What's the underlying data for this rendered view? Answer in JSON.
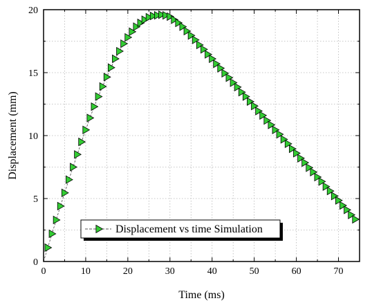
{
  "chart_data": {
    "type": "scatter",
    "title": "",
    "xlabel": "Time (ms)",
    "ylabel": "Displacement (mm)",
    "xlim": [
      0,
      75
    ],
    "ylim": [
      0,
      20
    ],
    "xticks": [
      0,
      10,
      20,
      30,
      40,
      50,
      60,
      70
    ],
    "yticks": [
      0,
      5,
      10,
      15,
      20
    ],
    "grid": true,
    "legend_position": "bottom-center",
    "series": [
      {
        "name": "Displacement vs time Simulation",
        "marker": "triangle-right",
        "color": "#33cc33",
        "line_style": "dashed",
        "x": [
          0,
          1,
          2,
          3,
          4,
          5,
          6,
          7,
          8,
          9,
          10,
          11,
          12,
          13,
          14,
          15,
          16,
          17,
          18,
          19,
          20,
          21,
          22,
          23,
          24,
          25,
          26,
          27,
          28,
          29,
          30,
          31,
          32,
          33,
          34,
          35,
          36,
          37,
          38,
          39,
          40,
          41,
          42,
          43,
          44,
          45,
          46,
          47,
          48,
          49,
          50,
          51,
          52,
          53,
          54,
          55,
          56,
          57,
          58,
          59,
          60,
          61,
          62,
          63,
          64,
          65,
          66,
          67,
          68,
          69,
          70,
          71,
          72,
          73,
          74
        ],
        "y": [
          0,
          1.1,
          2.2,
          3.3,
          4.4,
          5.45,
          6.5,
          7.5,
          8.5,
          9.5,
          10.45,
          11.4,
          12.3,
          13.1,
          13.9,
          14.65,
          15.4,
          16.1,
          16.7,
          17.3,
          17.8,
          18.25,
          18.65,
          18.95,
          19.2,
          19.4,
          19.5,
          19.55,
          19.6,
          19.55,
          19.45,
          19.2,
          18.95,
          18.65,
          18.3,
          17.95,
          17.6,
          17.2,
          16.85,
          16.45,
          16.1,
          15.7,
          15.35,
          14.95,
          14.6,
          14.2,
          13.85,
          13.45,
          13.1,
          12.7,
          12.35,
          11.95,
          11.6,
          11.2,
          10.85,
          10.45,
          10.1,
          9.7,
          9.35,
          8.95,
          8.6,
          8.2,
          7.85,
          7.45,
          7.1,
          6.7,
          6.35,
          5.95,
          5.6,
          5.2,
          4.85,
          4.45,
          4.1,
          3.7,
          3.35
        ]
      }
    ]
  }
}
